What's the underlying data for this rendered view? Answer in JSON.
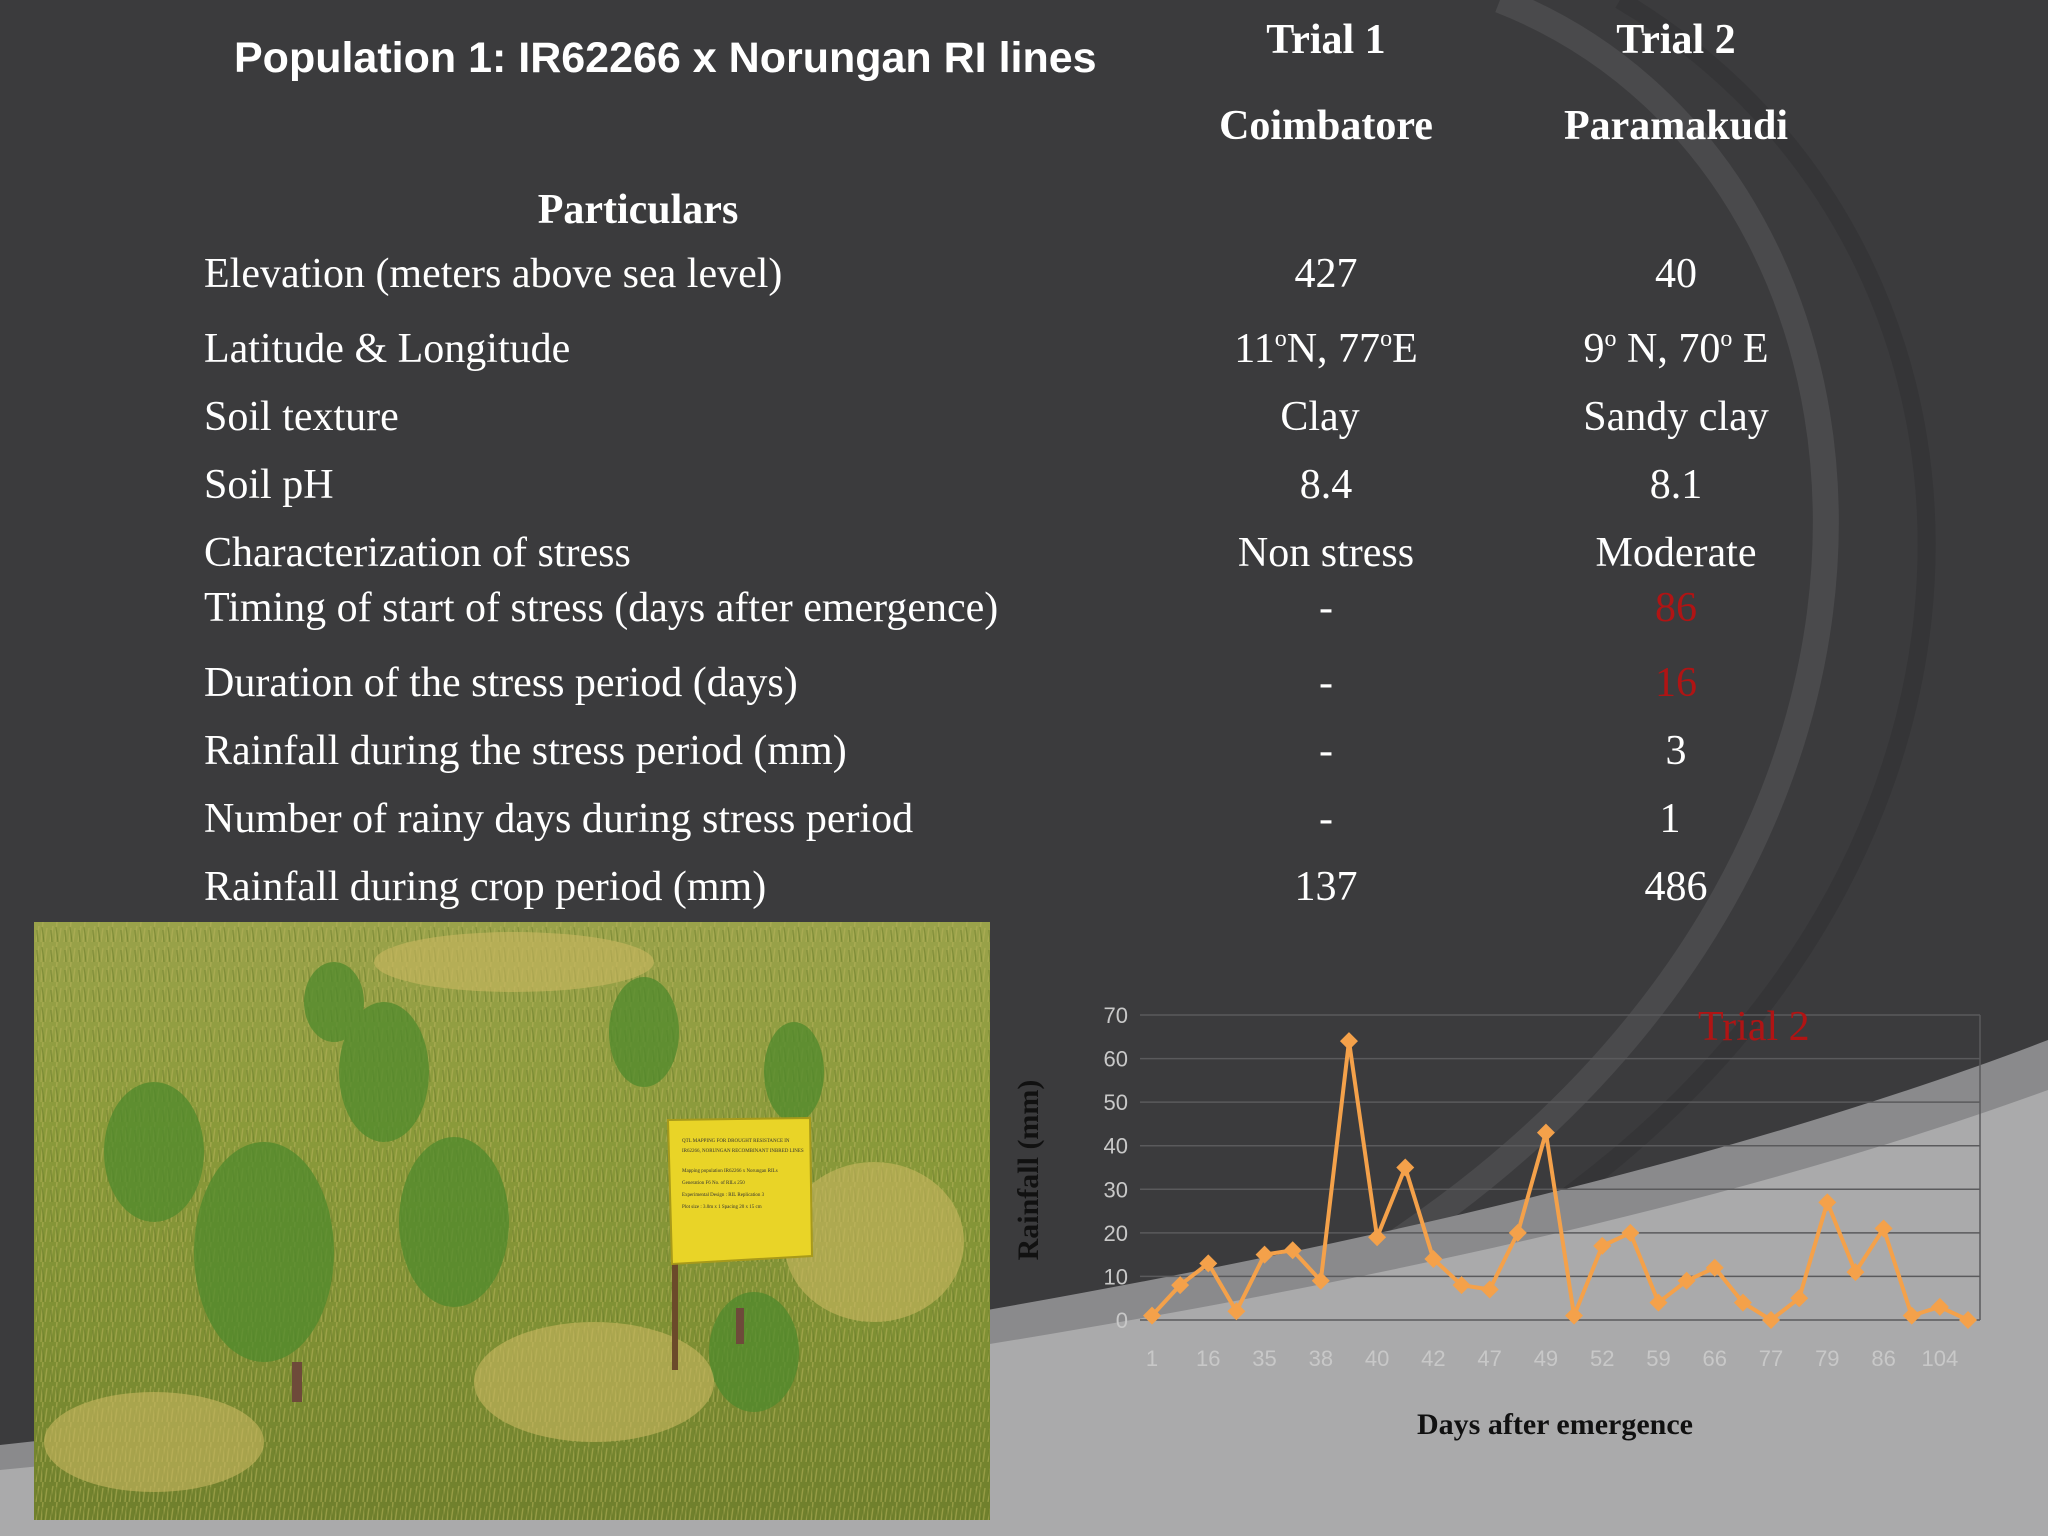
{
  "slide": {
    "title": "Population 1: IR62266 x Norungan RI lines",
    "headers": {
      "trial1": "Trial 1",
      "trial2": "Trial 2",
      "loc1": "Coimbatore",
      "loc2": "Paramakudi",
      "particulars": "Particulars"
    },
    "rows": [
      {
        "label": "Elevation (meters above sea level)",
        "t1": "427",
        "t2": "40"
      },
      {
        "label": "Latitude & Longitude",
        "t1": "",
        "t2": "",
        "t1_parts": {
          "a": "11",
          "b": "o",
          "c": "N, 77",
          "d": "o",
          "e": "E"
        },
        "t2_parts": {
          "a": "9",
          "b": "o",
          "c": " N, 70",
          "d": "o",
          "e": " E"
        }
      },
      {
        "label": "Soil texture",
        "t1": "Clay",
        "t2": "Sandy clay"
      },
      {
        "label": "Soil pH",
        "t1": "8.4",
        "t2": "8.1"
      },
      {
        "label": "Characterization of stress",
        "t1": "Non stress",
        "t2": "Moderate"
      },
      {
        "label": "Timing of start of stress (days after emergence)",
        "t1": "-",
        "t2": "86"
      },
      {
        "label": "Duration of the stress period (days)",
        "t1": "-",
        "t2": "16"
      },
      {
        "label": "Rainfall during the stress period (mm)",
        "t1": "-",
        "t2": "3"
      },
      {
        "label": "Number of rainy days during stress period",
        "t1": "-",
        "t2": "1"
      },
      {
        "label": "Rainfall during crop period (mm)",
        "t1": "137",
        "t2": "486"
      }
    ],
    "colors": {
      "accent_red": "#b01414",
      "line_orange": "#f4a14a"
    }
  },
  "photo": {
    "sign_lines": [
      "QTL MAPPING FOR DROUGHT RESISTANCE IN",
      "IR62266, NORUNGAN RECOMBINANT INBRED LINES",
      "Mapping population IR62266 x Norungan RILs",
      "Generation F6 No. of RILs 250",
      "Experimental Design : RIL Replication 3",
      "Plot size : 3.0m x 1 Spacing 20 x 15 cm"
    ]
  },
  "chart_data": {
    "type": "line",
    "annotation": "Trial 2",
    "xlabel": "Days after emergence",
    "ylabel": "Rainfall (mm)",
    "ylim": [
      0,
      70
    ],
    "yticks": [
      0,
      10,
      20,
      30,
      40,
      50,
      60,
      70
    ],
    "xtick_labels": [
      "1",
      "16",
      "35",
      "38",
      "40",
      "42",
      "47",
      "49",
      "52",
      "59",
      "66",
      "77",
      "79",
      "86",
      "104"
    ],
    "values": [
      1,
      8,
      13,
      2,
      15,
      16,
      9,
      64,
      19,
      35,
      14,
      8,
      7,
      20,
      43,
      1,
      17,
      20,
      4,
      9,
      12,
      4,
      0,
      5,
      27,
      11,
      21,
      1,
      3,
      0
    ],
    "grid": true,
    "legend": "none"
  }
}
